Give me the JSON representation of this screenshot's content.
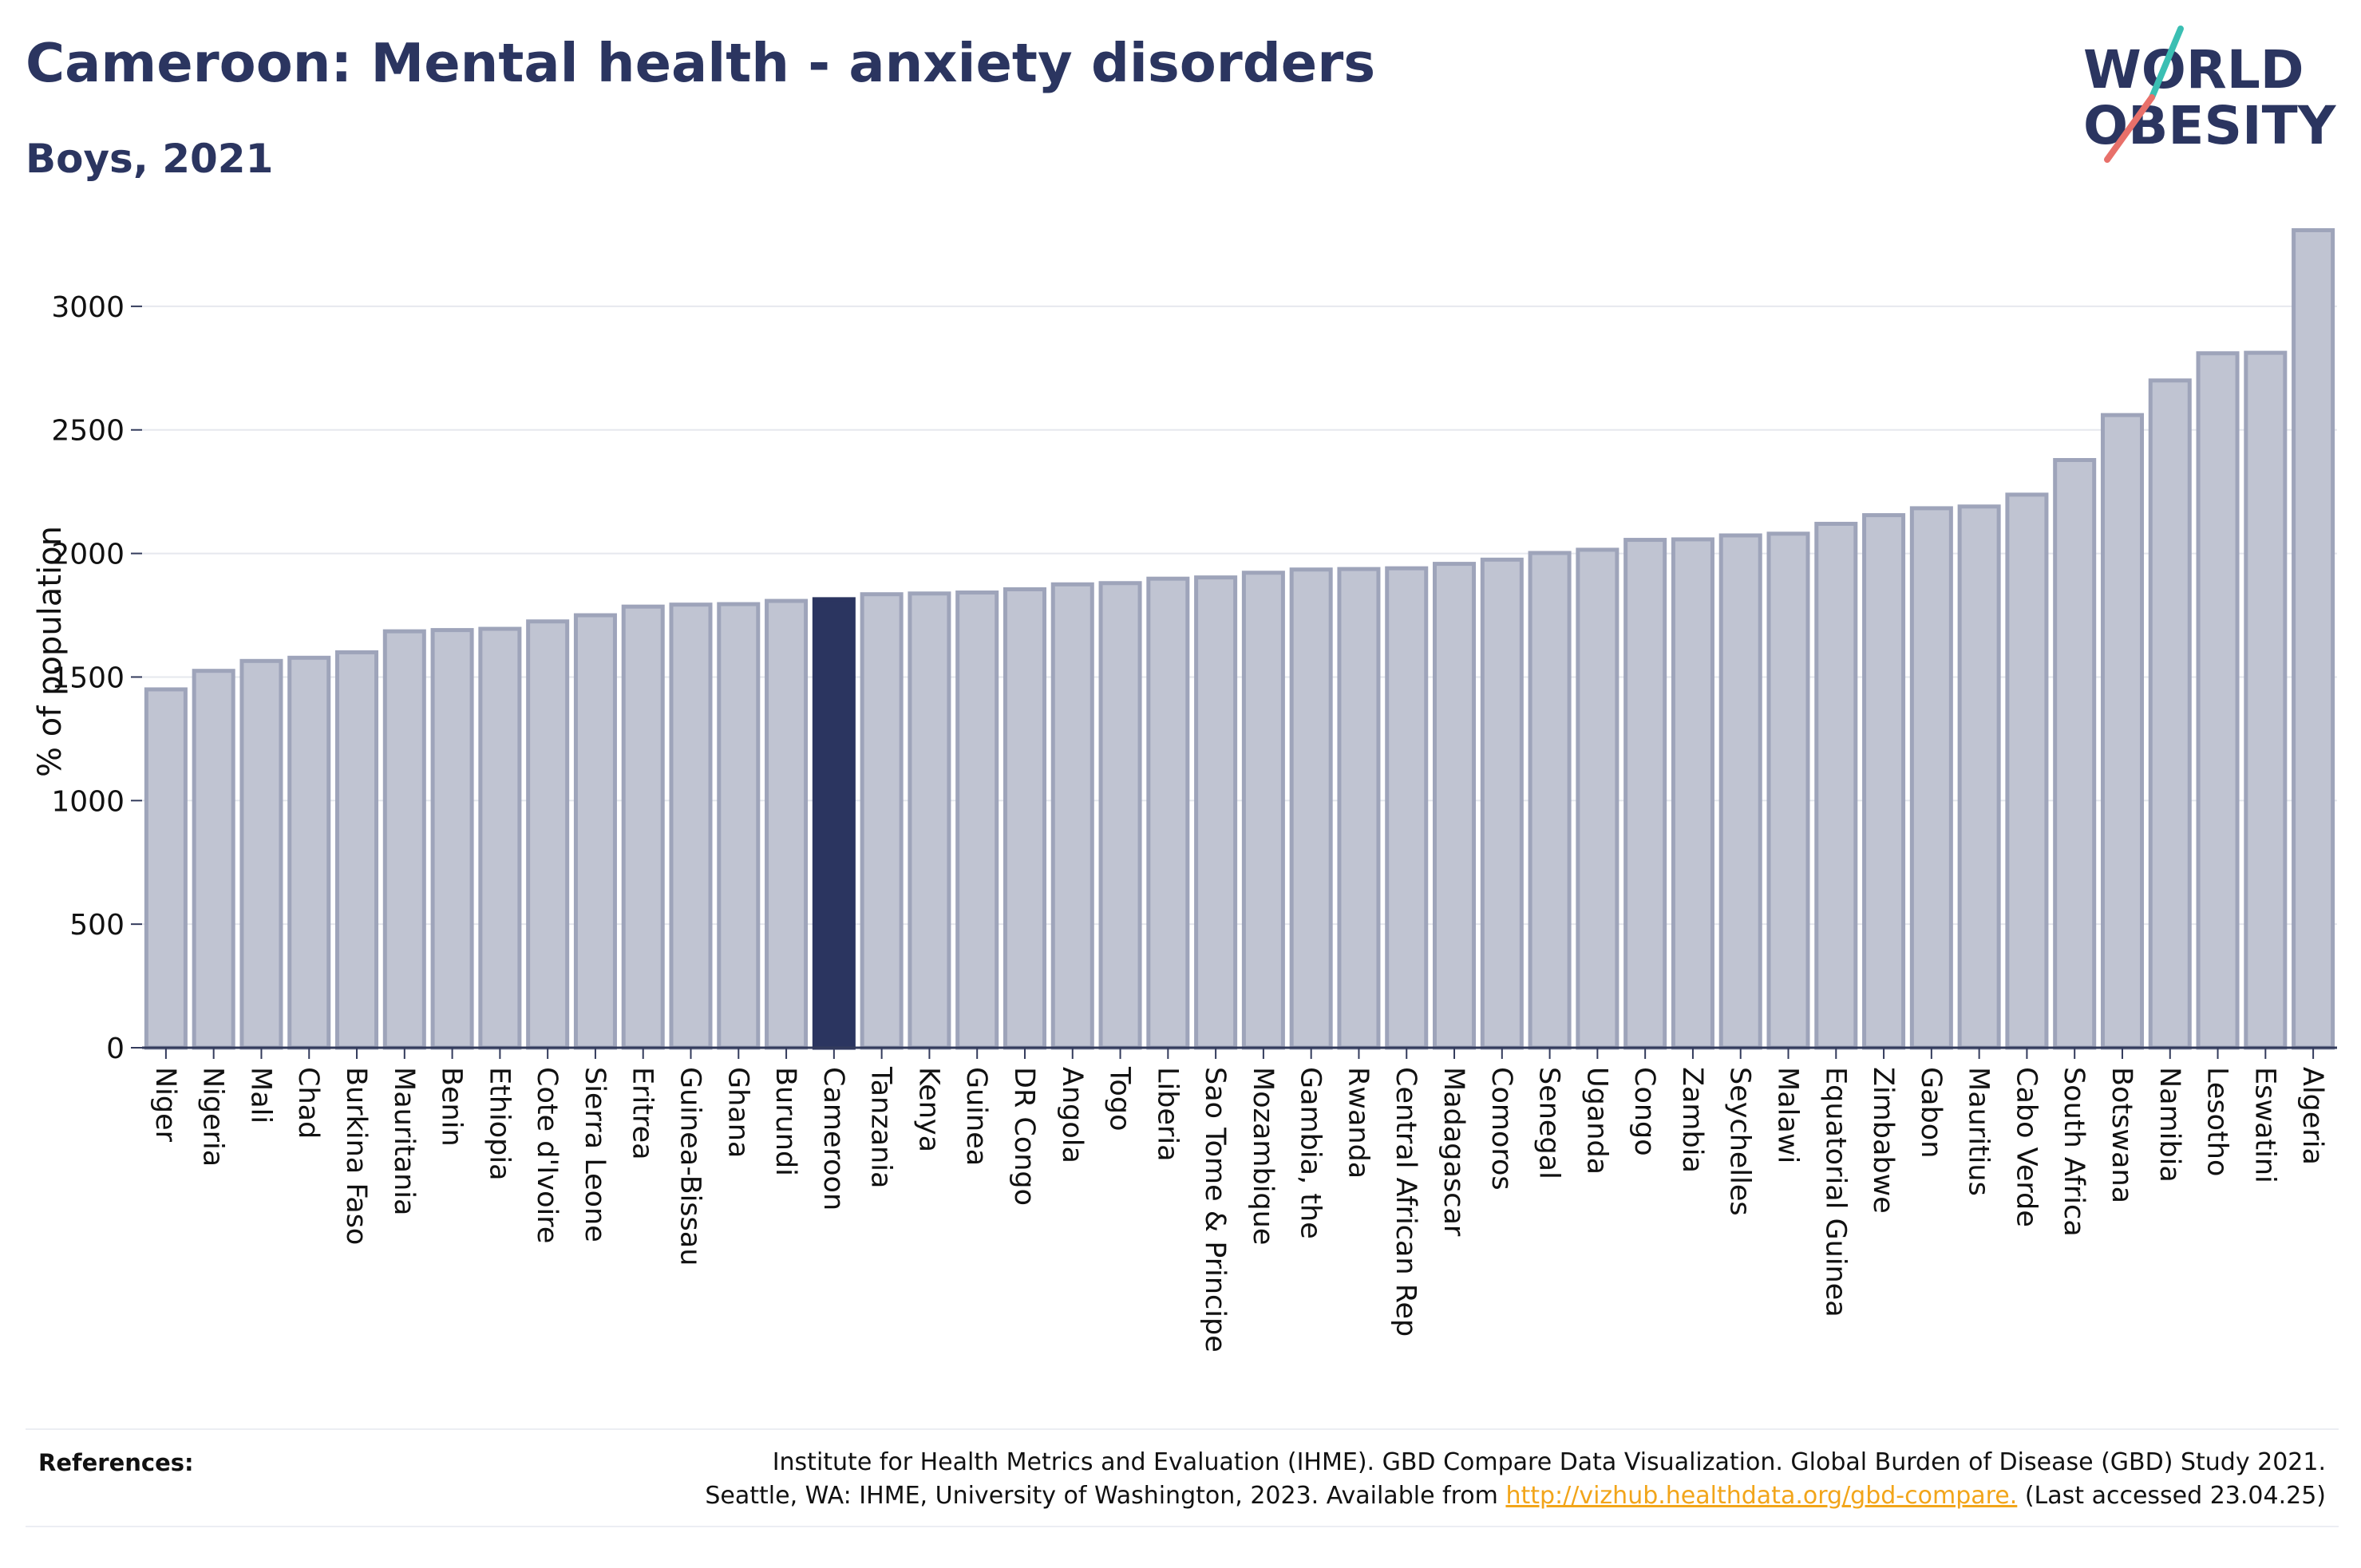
{
  "header": {
    "title": "Cameroon: Mental health - anxiety disorders",
    "subtitle": "Boys, 2021"
  },
  "logo": {
    "line1": "WORLD",
    "line2": "OBESITY"
  },
  "chart_data": {
    "type": "bar",
    "title": "Cameroon: Mental health - anxiety disorders",
    "subtitle": "Boys, 2021",
    "xlabel": "",
    "ylabel": "% of population",
    "ylim": [
      0,
      3400
    ],
    "yticks": [
      0,
      500,
      1000,
      1500,
      2000,
      2500,
      3000
    ],
    "grid": true,
    "highlight": "Cameroon",
    "colors": {
      "bar": "#c0c4d2",
      "bar_edge": "#9ea4ba",
      "highlight": "#2b3560"
    },
    "categories": [
      "Niger",
      "Nigeria",
      "Mali",
      "Chad",
      "Burkina Faso",
      "Mauritania",
      "Benin",
      "Ethiopia",
      "Cote d'Ivoire",
      "Sierra Leone",
      "Eritrea",
      "Guinea-Bissau",
      "Ghana",
      "Burundi",
      "Cameroon",
      "Tanzania",
      "Kenya",
      "Guinea",
      "DR Congo",
      "Angola",
      "Togo",
      "Liberia",
      "Sao Tome & Principe",
      "Mozambique",
      "Gambia, the",
      "Rwanda",
      "Central African Rep",
      "Madagascar",
      "Comoros",
      "Senegal",
      "Uganda",
      "Congo",
      "Zambia",
      "Seychelles",
      "Malawi",
      "Equatorial Guinea",
      "Zimbabwe",
      "Gabon",
      "Mauritius",
      "Cabo Verde",
      "South Africa",
      "Botswana",
      "Namibia",
      "Lesotho",
      "Eswatini",
      "Algeria"
    ],
    "values": [
      1450,
      1525,
      1565,
      1578,
      1600,
      1685,
      1690,
      1695,
      1725,
      1750,
      1785,
      1793,
      1795,
      1808,
      1815,
      1835,
      1838,
      1842,
      1855,
      1875,
      1880,
      1898,
      1903,
      1922,
      1935,
      1937,
      1940,
      1958,
      1975,
      2002,
      2015,
      2055,
      2057,
      2073,
      2080,
      2120,
      2155,
      2183,
      2190,
      2238,
      2378,
      2560,
      2700,
      2810,
      2812,
      3308
    ]
  },
  "references": {
    "label": "References:",
    "line1": "Institute for Health Metrics and Evaluation (IHME). GBD Compare Data Visualization. Global Burden of Disease (GBD) Study 2021.",
    "line2_prefix": "Seattle, WA: IHME, University of Washington, 2023. Available from",
    "link": "http://vizhub.healthdata.org/gbd-compare.",
    "line2_suffix": "(Last accessed 23.04.25)"
  }
}
